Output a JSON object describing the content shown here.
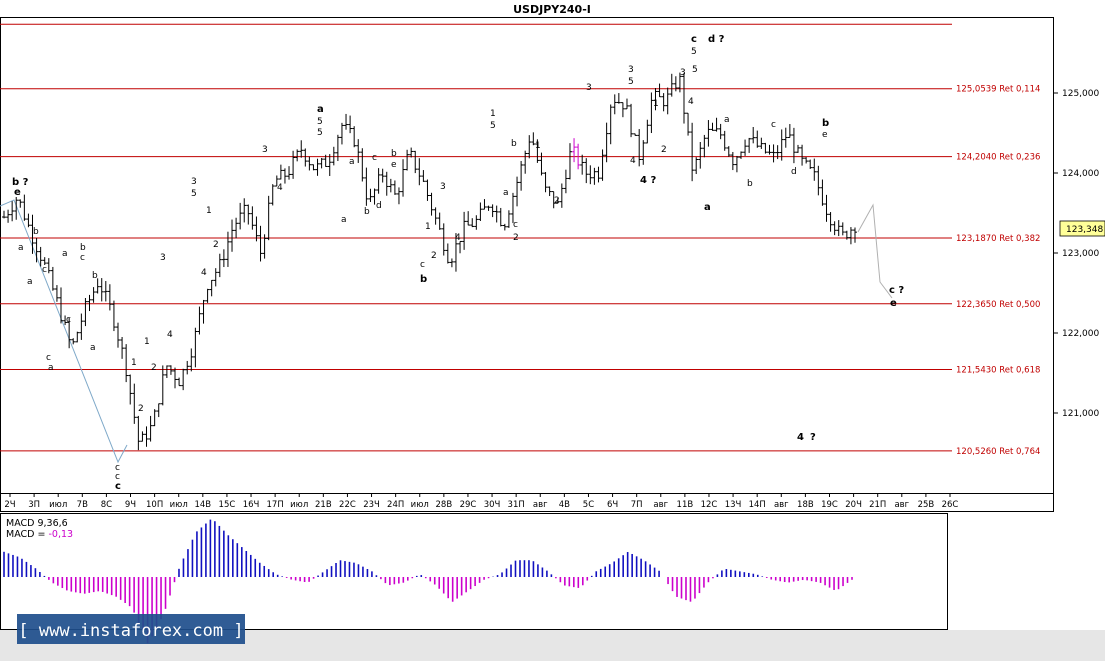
{
  "chart_data": {
    "type": "bar",
    "title": "USDJPY240-I",
    "current_price": "123,348",
    "ylim": [
      120.0,
      125.95
    ],
    "y_ticks": [
      {
        "value": 125.0,
        "label": "125,000"
      },
      {
        "value": 124.0,
        "label": "124,000"
      },
      {
        "value": 123.0,
        "label": "123,000"
      },
      {
        "value": 122.0,
        "label": "122,000"
      },
      {
        "value": 121.0,
        "label": "121,000"
      }
    ],
    "fib_levels": [
      {
        "value": 125.86,
        "label": ""
      },
      {
        "value": 125.0539,
        "label": "125,0539 Ret 0,114"
      },
      {
        "value": 124.204,
        "label": "124,2040 Ret 0,236"
      },
      {
        "value": 123.187,
        "label": "123,1870 Ret 0,382"
      },
      {
        "value": 122.365,
        "label": "122,3650 Ret 0,500"
      },
      {
        "value": 121.543,
        "label": "121,5430 Ret 0,618"
      },
      {
        "value": 120.526,
        "label": "120,5260 Ret 0,764"
      }
    ],
    "x_ticks": [
      "2Ч",
      "3П",
      "июл",
      "7В",
      "8С",
      "9Ч",
      "10П",
      "июл",
      "14В",
      "15С",
      "16Ч",
      "17П",
      "июл",
      "21В",
      "22С",
      "23Ч",
      "24П",
      "июл",
      "28В",
      "29С",
      "30Ч",
      "31П",
      "авг",
      "4В",
      "5С",
      "6Ч",
      "7П",
      "авг",
      "11В",
      "12С",
      "13Ч",
      "14П",
      "авг",
      "18В",
      "19С",
      "20Ч",
      "21П",
      "авг",
      "25В",
      "26С"
    ],
    "price_path": [
      123.45,
      123.7,
      123.25,
      122.85,
      122.35,
      121.8,
      122.3,
      122.65,
      122.25,
      121.6,
      120.6,
      120.85,
      121.6,
      121.4,
      121.85,
      122.6,
      122.85,
      123.35,
      123.55,
      123.0,
      123.9,
      124.0,
      124.3,
      124.05,
      124.15,
      124.6,
      124.4,
      123.6,
      124.0,
      123.7,
      124.25,
      123.9,
      123.4,
      122.9,
      123.3,
      123.4,
      123.65,
      123.35,
      123.9,
      124.5,
      123.8,
      123.6,
      124.3,
      124.0,
      124.0,
      124.95,
      124.85,
      124.2,
      124.95,
      124.9,
      125.2,
      124.0,
      124.5,
      124.5,
      124.15,
      124.45,
      124.3,
      124.2,
      124.5,
      124.15,
      123.95,
      123.5,
      123.2,
      123.35
    ],
    "forecast_path": [
      [
        123.35,
        873,
        205
      ],
      [
        122.4,
        880,
        282
      ],
      [
        122.28,
        892,
        298
      ]
    ],
    "wave_labels": [
      {
        "t": "b ?",
        "x": 12,
        "y": 185,
        "c": "#000",
        "b": true
      },
      {
        "t": "e",
        "x": 14,
        "y": 195,
        "c": "#000",
        "b": true
      },
      {
        "t": "b",
        "x": 33,
        "y": 234,
        "c": "#000"
      },
      {
        "t": "a",
        "x": 18,
        "y": 250,
        "c": "#000"
      },
      {
        "t": "a",
        "x": 62,
        "y": 256,
        "c": "#000"
      },
      {
        "t": "c",
        "x": 42,
        "y": 272,
        "c": "#000"
      },
      {
        "t": "b",
        "x": 80,
        "y": 250,
        "c": "#00008b"
      },
      {
        "t": "c",
        "x": 80,
        "y": 260,
        "c": "#000"
      },
      {
        "t": "b",
        "x": 92,
        "y": 278,
        "c": "#000"
      },
      {
        "t": "a",
        "x": 27,
        "y": 284,
        "c": "#000"
      },
      {
        "t": "c",
        "x": 66,
        "y": 322,
        "c": "#000"
      },
      {
        "t": "a",
        "x": 90,
        "y": 350,
        "c": "#000"
      },
      {
        "t": "c",
        "x": 46,
        "y": 360,
        "c": "#000"
      },
      {
        "t": "a",
        "x": 48,
        "y": 370,
        "c": "#00008b"
      },
      {
        "t": "c",
        "x": 115,
        "y": 470,
        "c": "#000"
      },
      {
        "t": "c",
        "x": 115,
        "y": 479,
        "c": "#000"
      },
      {
        "t": "c",
        "x": 115,
        "y": 489,
        "c": "#00008b",
        "b": true
      },
      {
        "t": "1",
        "x": 131,
        "y": 365,
        "c": "#00008b"
      },
      {
        "t": "2",
        "x": 138,
        "y": 411,
        "c": "#00008b"
      },
      {
        "t": "1",
        "x": 144,
        "y": 344,
        "c": "#000"
      },
      {
        "t": "2",
        "x": 151,
        "y": 370,
        "c": "#000"
      },
      {
        "t": "3",
        "x": 160,
        "y": 260,
        "c": "#000"
      },
      {
        "t": "4",
        "x": 167,
        "y": 337,
        "c": "#000"
      },
      {
        "t": "3",
        "x": 191,
        "y": 184,
        "c": "#00008b"
      },
      {
        "t": "5",
        "x": 191,
        "y": 196,
        "c": "#000"
      },
      {
        "t": "1",
        "x": 206,
        "y": 213,
        "c": "#000"
      },
      {
        "t": "2",
        "x": 213,
        "y": 247,
        "c": "#000"
      },
      {
        "t": "4",
        "x": 201,
        "y": 275,
        "c": "#00008b"
      },
      {
        "t": "3",
        "x": 262,
        "y": 152,
        "c": "#000"
      },
      {
        "t": "4",
        "x": 277,
        "y": 190,
        "c": "#000"
      },
      {
        "t": "a",
        "x": 317,
        "y": 112,
        "c": "#000",
        "b": true
      },
      {
        "t": "5",
        "x": 317,
        "y": 124,
        "c": "#00008b"
      },
      {
        "t": "5",
        "x": 317,
        "y": 135,
        "c": "#000"
      },
      {
        "t": "a",
        "x": 349,
        "y": 164,
        "c": "#000"
      },
      {
        "t": "c",
        "x": 372,
        "y": 160,
        "c": "#000"
      },
      {
        "t": "b",
        "x": 391,
        "y": 156,
        "c": "#00008b"
      },
      {
        "t": "e",
        "x": 391,
        "y": 167,
        "c": "#000"
      },
      {
        "t": "a",
        "x": 341,
        "y": 222,
        "c": "#00008b"
      },
      {
        "t": "b",
        "x": 364,
        "y": 214,
        "c": "#000"
      },
      {
        "t": "d",
        "x": 376,
        "y": 208,
        "c": "#000"
      },
      {
        "t": "1",
        "x": 425,
        "y": 229,
        "c": "#000"
      },
      {
        "t": "2",
        "x": 431,
        "y": 258,
        "c": "#000"
      },
      {
        "t": "3",
        "x": 440,
        "y": 189,
        "c": "#000"
      },
      {
        "t": "4",
        "x": 455,
        "y": 240,
        "c": "#000"
      },
      {
        "t": "c",
        "x": 420,
        "y": 267,
        "c": "#00008b"
      },
      {
        "t": "b",
        "x": 420,
        "y": 282,
        "c": "#000",
        "b": true
      },
      {
        "t": "1",
        "x": 490,
        "y": 116,
        "c": "#00008b"
      },
      {
        "t": "5",
        "x": 490,
        "y": 128,
        "c": "#000"
      },
      {
        "t": "b",
        "x": 511,
        "y": 146,
        "c": "#000"
      },
      {
        "t": "1",
        "x": 535,
        "y": 148,
        "c": "#000"
      },
      {
        "t": "a",
        "x": 503,
        "y": 195,
        "c": "#000"
      },
      {
        "t": "2",
        "x": 554,
        "y": 203,
        "c": "#000"
      },
      {
        "t": "c",
        "x": 513,
        "y": 227,
        "c": "#000"
      },
      {
        "t": "2",
        "x": 513,
        "y": 240,
        "c": "#00008b"
      },
      {
        "t": "3",
        "x": 586,
        "y": 90,
        "c": "#000"
      },
      {
        "t": "3",
        "x": 628,
        "y": 72,
        "c": "#00008b"
      },
      {
        "t": "5",
        "x": 628,
        "y": 84,
        "c": "#000"
      },
      {
        "t": "1",
        "x": 653,
        "y": 106,
        "c": "#000"
      },
      {
        "t": "2",
        "x": 661,
        "y": 152,
        "c": "#000"
      },
      {
        "t": "4",
        "x": 630,
        "y": 163,
        "c": "#000"
      },
      {
        "t": "4 ?",
        "x": 640,
        "y": 183,
        "c": "#00008b",
        "b": true
      },
      {
        "t": "c",
        "x": 691,
        "y": 42,
        "c": "#00008b",
        "b": true
      },
      {
        "t": "d ?",
        "x": 708,
        "y": 42,
        "c": "#00008b",
        "b": true
      },
      {
        "t": "5",
        "x": 691,
        "y": 54,
        "c": "#00008b"
      },
      {
        "t": "5",
        "x": 692,
        "y": 72,
        "c": "#000"
      },
      {
        "t": "3",
        "x": 680,
        "y": 75,
        "c": "#000"
      },
      {
        "t": "4",
        "x": 688,
        "y": 104,
        "c": "#000"
      },
      {
        "t": "a",
        "x": 724,
        "y": 122,
        "c": "#000"
      },
      {
        "t": "c",
        "x": 771,
        "y": 127,
        "c": "#000"
      },
      {
        "t": "b",
        "x": 822,
        "y": 126,
        "c": "#000",
        "b": true
      },
      {
        "t": "e",
        "x": 822,
        "y": 137,
        "c": "#000"
      },
      {
        "t": "b",
        "x": 747,
        "y": 186,
        "c": "#000"
      },
      {
        "t": "d",
        "x": 791,
        "y": 174,
        "c": "#000"
      },
      {
        "t": "a",
        "x": 704,
        "y": 210,
        "c": "#000",
        "b": true
      },
      {
        "t": "c ?",
        "x": 889,
        "y": 293,
        "c": "#000",
        "b": true
      },
      {
        "t": "e",
        "x": 890,
        "y": 306,
        "c": "#00008b",
        "b": true
      },
      {
        "t": "4",
        "x": 797,
        "y": 440,
        "c": "#20b0c0",
        "b": true
      },
      {
        "t": "?",
        "x": 810,
        "y": 440,
        "c": "#dd0000",
        "b": true
      }
    ]
  },
  "macd": {
    "title": "MACD 9,36,6",
    "value_label": "MACD = ",
    "value": "-0,13",
    "values": [
      0.9,
      0.7,
      0.3,
      -0.2,
      -0.5,
      -0.6,
      -0.5,
      -0.7,
      -1.1,
      -2.4,
      -1.3,
      0.4,
      1.6,
      2.1,
      1.5,
      1.0,
      0.5,
      0.1,
      -0.1,
      -0.2,
      0.2,
      0.6,
      0.5,
      0.2,
      -0.3,
      -0.2,
      0.1,
      -0.3,
      -0.9,
      -0.5,
      -0.1,
      0.1,
      0.6,
      0.6,
      0.2,
      -0.3,
      -0.4,
      0.2,
      0.5,
      0.9,
      0.6,
      0.2,
      -0.7,
      -0.9,
      -0.2,
      0.3,
      0.2,
      0.1,
      -0.1,
      -0.2,
      -0.1,
      -0.2,
      -0.5,
      -0.1
    ]
  },
  "watermark": "[ www.instaforex.com ]"
}
